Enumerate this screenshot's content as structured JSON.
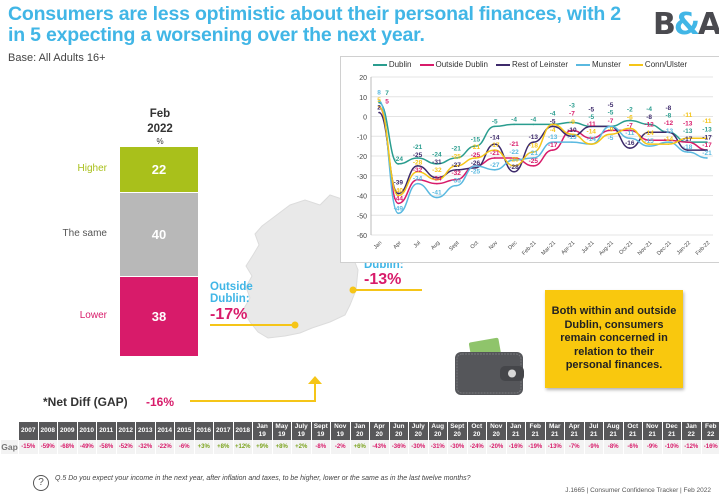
{
  "header": {
    "title": "Consumers are less optimistic about their personal finances, with 2 in 5 expecting a worsening over the next year.",
    "logo": {
      "left": "B",
      "amp": "&",
      "right": "A"
    },
    "base": "Base: All Adults 16+"
  },
  "stacked_bar": {
    "period_line1": "Feb",
    "period_line2": "2022",
    "unit": "%",
    "segments": [
      {
        "label": "Higher",
        "value": "22",
        "color": "#a9c01b"
      },
      {
        "label": "The same",
        "value": "40",
        "color": "#b8b8b8"
      },
      {
        "label": "Lower",
        "value": "38",
        "color": "#d81b6a"
      }
    ],
    "net_diff_label": "*Net Diff (GAP)",
    "net_diff_value": "-16%"
  },
  "regions": {
    "outside_dublin": {
      "label_line1": "Outside",
      "label_line2": "Dublin:",
      "value": "-17%"
    },
    "dublin": {
      "label": "Dublin:",
      "value": "-13%"
    }
  },
  "callout": {
    "text": "Both within and outside Dublin, consumers remain concerned in relation to their personal finances."
  },
  "chart_data": {
    "type": "line",
    "title": "",
    "xlabel": "",
    "ylabel": "",
    "ylim": [
      -60,
      20
    ],
    "yticks": [
      20,
      10,
      0,
      -10,
      -20,
      -30,
      -40,
      -50,
      -60
    ],
    "grid": true,
    "legend_position": "top",
    "categories": [
      "Jan",
      "Apr",
      "Jul",
      "Aug",
      "Sept",
      "Oct",
      "Nov",
      "Dec",
      "Feb-21",
      "Mar-21",
      "Apr-21",
      "Jul-21",
      "Aug-21",
      "Oct-21",
      "Nov-21",
      "Dec-21",
      "Jan-22",
      "Feb-22"
    ],
    "series": [
      {
        "name": "Dublin",
        "color": "#2a9d8f",
        "values": [
          7,
          -24,
          -21,
          -24,
          -21,
          -15,
          -5,
          -4,
          -4,
          -4,
          -3,
          -5,
          -5,
          -2,
          -4,
          -8,
          -13,
          -13
        ]
      },
      {
        "name": "Outside Dublin",
        "color": "#d81b6a",
        "values": [
          5,
          -44,
          -32,
          -34,
          -32,
          -25,
          -21,
          -21,
          -25,
          -17,
          -7,
          -11,
          -7,
          -7,
          -12,
          -12,
          -13,
          -17
        ]
      },
      {
        "name": "Rest of Leinster",
        "color": "#3d2a6b",
        "values": [
          2,
          -39,
          -25,
          -31,
          -27,
          -26,
          -14,
          -28,
          -13,
          -5,
          -10,
          -5,
          -5,
          -16,
          -8,
          -8,
          -17,
          -17
        ]
      },
      {
        "name": "Munster",
        "color": "#5ab9e0",
        "values": [
          8,
          -49,
          -34,
          -41,
          -35,
          -25,
          -27,
          -22,
          -21,
          -13,
          -13,
          -14,
          -5,
          -11,
          -15,
          -13,
          -18,
          -21
        ]
      },
      {
        "name": "Conn/Ulster",
        "color": "#f5c518",
        "values": [
          5,
          -40,
          -28,
          -32,
          -25,
          -21,
          -17,
          -25,
          -18,
          -4,
          -9,
          -14,
          -9,
          -6,
          -14,
          -14,
          -11,
          -11
        ]
      }
    ]
  },
  "gap_table": {
    "row_label": "Gap",
    "columns": [
      {
        "h1": "2007",
        "h2": "",
        "gap": "-15%"
      },
      {
        "h1": "2008",
        "h2": "",
        "gap": "-59%"
      },
      {
        "h1": "2009",
        "h2": "",
        "gap": "-68%"
      },
      {
        "h1": "2010",
        "h2": "",
        "gap": "-49%"
      },
      {
        "h1": "2011",
        "h2": "",
        "gap": "-58%"
      },
      {
        "h1": "2012",
        "h2": "",
        "gap": "-52%"
      },
      {
        "h1": "2013",
        "h2": "",
        "gap": "-32%"
      },
      {
        "h1": "2014",
        "h2": "",
        "gap": "-22%"
      },
      {
        "h1": "2015",
        "h2": "",
        "gap": "-6%"
      },
      {
        "h1": "2016",
        "h2": "",
        "gap": "+3%"
      },
      {
        "h1": "2017",
        "h2": "",
        "gap": "+8%"
      },
      {
        "h1": "2018",
        "h2": "",
        "gap": "+12%"
      },
      {
        "h1": "Jan",
        "h2": "19",
        "gap": "+9%"
      },
      {
        "h1": "May",
        "h2": "19",
        "gap": "+8%"
      },
      {
        "h1": "July",
        "h2": "19",
        "gap": "+2%"
      },
      {
        "h1": "Sept",
        "h2": "19",
        "gap": "-8%"
      },
      {
        "h1": "Nov",
        "h2": "19",
        "gap": "-2%"
      },
      {
        "h1": "Jan",
        "h2": "20",
        "gap": "+6%"
      },
      {
        "h1": "Apr",
        "h2": "20",
        "gap": "-43%"
      },
      {
        "h1": "Jun",
        "h2": "20",
        "gap": "-36%"
      },
      {
        "h1": "July",
        "h2": "20",
        "gap": "-30%"
      },
      {
        "h1": "Aug",
        "h2": "20",
        "gap": "-31%"
      },
      {
        "h1": "Sept",
        "h2": "20",
        "gap": "-30%"
      },
      {
        "h1": "Oct",
        "h2": "20",
        "gap": "-24%"
      },
      {
        "h1": "Nov",
        "h2": "20",
        "gap": "-20%"
      },
      {
        "h1": "Jan",
        "h2": "21",
        "gap": "-16%"
      },
      {
        "h1": "Feb",
        "h2": "21",
        "gap": "-19%"
      },
      {
        "h1": "Mar",
        "h2": "21",
        "gap": "-13%"
      },
      {
        "h1": "Apr",
        "h2": "21",
        "gap": "-7%"
      },
      {
        "h1": "Jul",
        "h2": "21",
        "gap": "-9%"
      },
      {
        "h1": "Aug",
        "h2": "21",
        "gap": "-8%"
      },
      {
        "h1": "Oct",
        "h2": "21",
        "gap": "-6%"
      },
      {
        "h1": "Nov",
        "h2": "21",
        "gap": "-9%"
      },
      {
        "h1": "Dec",
        "h2": "21",
        "gap": "-10%"
      },
      {
        "h1": "Jan",
        "h2": "22",
        "gap": "-12%"
      },
      {
        "h1": "Feb",
        "h2": "22",
        "gap": "-16%"
      }
    ]
  },
  "footer": {
    "question_icon": "question-circle-icon",
    "question_mark": "?",
    "question": "Q.5 Do you expect your income in the next year, after inflation and taxes, to be higher, lower or the same as in the last twelve months?",
    "source": "J.1665 | Consumer Confidence Tracker | Feb 2022"
  }
}
